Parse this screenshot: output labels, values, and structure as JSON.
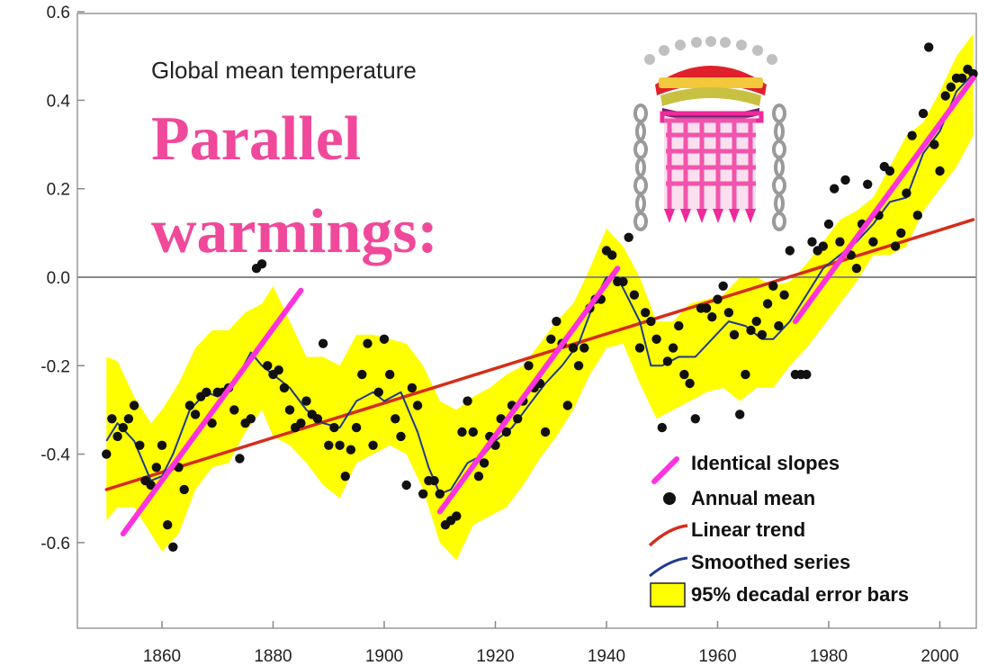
{
  "chart_data": {
    "type": "line",
    "title": "Global mean temperature",
    "overlay_text": [
      "Parallel",
      "warmings:"
    ],
    "xlabel": "",
    "ylabel": "",
    "xlim": [
      1848,
      2008
    ],
    "ylim": [
      -0.8,
      0.62
    ],
    "x_ticks": [
      1860,
      1880,
      1900,
      1920,
      1940,
      1960,
      1980,
      2000
    ],
    "y_ticks": [
      -0.6,
      -0.4,
      -0.2,
      0.0,
      0.2,
      0.4,
      0.6
    ],
    "y_tick_labels": [
      "-0.6",
      "-0.4",
      "-0.2",
      "0.0",
      "0.2",
      "0.4",
      "0.6"
    ],
    "colors": {
      "error_band": "#ffff00",
      "smoothed": "#1f3a8a",
      "trend": "#d62c1a",
      "slopes": "#ff33dd",
      "points": "#111111",
      "overlay_text": "#f0489a",
      "identical_slopes_label": "#ff33dd"
    },
    "legend": {
      "placement": "bottom-right",
      "items": [
        {
          "label": "Identical slopes",
          "kind": "slope"
        },
        {
          "label": "Annual mean",
          "kind": "point"
        },
        {
          "label": "Linear trend",
          "kind": "trend"
        },
        {
          "label": "Smoothed series",
          "kind": "smooth"
        },
        {
          "label": "95% decadal error bars",
          "kind": "band"
        }
      ]
    },
    "linear_trend": {
      "x": [
        1850,
        2006
      ],
      "y": [
        -0.48,
        0.13
      ]
    },
    "identical_slopes": [
      {
        "x": [
          1853,
          1885
        ],
        "y": [
          -0.58,
          -0.03
        ]
      },
      {
        "x": [
          1910,
          1942
        ],
        "y": [
          -0.53,
          0.02
        ]
      },
      {
        "x": [
          1974,
          2006
        ],
        "y": [
          -0.1,
          0.45
        ]
      }
    ],
    "smoothed_series": {
      "x": [
        1850,
        1852,
        1855,
        1858,
        1860,
        1862,
        1865,
        1868,
        1870,
        1873,
        1876,
        1878,
        1880,
        1883,
        1886,
        1889,
        1892,
        1895,
        1898,
        1900,
        1903,
        1906,
        1908,
        1910,
        1912,
        1915,
        1918,
        1920,
        1923,
        1926,
        1929,
        1932,
        1935,
        1938,
        1940,
        1942,
        1944,
        1946,
        1948,
        1950,
        1953,
        1956,
        1959,
        1962,
        1965,
        1968,
        1970,
        1973,
        1976,
        1979,
        1982,
        1985,
        1988,
        1991,
        1994,
        1997,
        2000,
        2003,
        2006
      ],
      "y": [
        -0.37,
        -0.33,
        -0.37,
        -0.46,
        -0.45,
        -0.4,
        -0.3,
        -0.26,
        -0.27,
        -0.24,
        -0.17,
        -0.2,
        -0.22,
        -0.25,
        -0.3,
        -0.33,
        -0.34,
        -0.28,
        -0.26,
        -0.28,
        -0.26,
        -0.35,
        -0.43,
        -0.49,
        -0.48,
        -0.42,
        -0.4,
        -0.37,
        -0.34,
        -0.29,
        -0.24,
        -0.2,
        -0.15,
        -0.05,
        0.0,
        0.0,
        -0.05,
        -0.1,
        -0.2,
        -0.2,
        -0.18,
        -0.18,
        -0.14,
        -0.1,
        -0.11,
        -0.14,
        -0.14,
        -0.1,
        -0.04,
        0.02,
        0.05,
        0.08,
        0.12,
        0.17,
        0.18,
        0.28,
        0.33,
        0.42,
        0.46
      ]
    },
    "error_band": {
      "x": [
        1850,
        1852,
        1855,
        1858,
        1860,
        1863,
        1866,
        1869,
        1872,
        1875,
        1878,
        1880,
        1883,
        1886,
        1889,
        1892,
        1895,
        1898,
        1901,
        1904,
        1907,
        1910,
        1913,
        1916,
        1919,
        1922,
        1925,
        1928,
        1931,
        1934,
        1937,
        1940,
        1943,
        1946,
        1949,
        1952,
        1955,
        1958,
        1961,
        1964,
        1967,
        1970,
        1973,
        1976,
        1979,
        1982,
        1985,
        1988,
        1991,
        1994,
        1997,
        2000,
        2003,
        2006
      ],
      "upper": [
        -0.18,
        -0.19,
        -0.27,
        -0.33,
        -0.3,
        -0.24,
        -0.16,
        -0.12,
        -0.12,
        -0.08,
        -0.06,
        -0.02,
        -0.1,
        -0.18,
        -0.18,
        -0.2,
        -0.13,
        -0.13,
        -0.14,
        -0.15,
        -0.2,
        -0.28,
        -0.3,
        -0.27,
        -0.25,
        -0.22,
        -0.2,
        -0.15,
        -0.1,
        -0.06,
        0.02,
        0.11,
        0.07,
        0.0,
        -0.1,
        -0.1,
        -0.06,
        -0.05,
        -0.04,
        0.0,
        0.0,
        -0.02,
        -0.01,
        0.03,
        0.08,
        0.13,
        0.15,
        0.18,
        0.25,
        0.32,
        0.35,
        0.42,
        0.5,
        0.55
      ],
      "lower": [
        -0.55,
        -0.52,
        -0.52,
        -0.58,
        -0.62,
        -0.58,
        -0.48,
        -0.43,
        -0.42,
        -0.35,
        -0.3,
        -0.36,
        -0.38,
        -0.42,
        -0.47,
        -0.5,
        -0.42,
        -0.4,
        -0.38,
        -0.4,
        -0.48,
        -0.6,
        -0.64,
        -0.56,
        -0.54,
        -0.52,
        -0.47,
        -0.41,
        -0.36,
        -0.3,
        -0.22,
        -0.16,
        -0.15,
        -0.24,
        -0.32,
        -0.3,
        -0.28,
        -0.26,
        -0.25,
        -0.28,
        -0.25,
        -0.25,
        -0.2,
        -0.16,
        -0.11,
        -0.06,
        -0.01,
        0.05,
        0.05,
        0.07,
        0.15,
        0.2,
        0.25,
        0.32
      ]
    },
    "annual_mean": {
      "x": [
        1850,
        1851,
        1852,
        1853,
        1854,
        1855,
        1856,
        1857,
        1858,
        1859,
        1860,
        1861,
        1862,
        1863,
        1864,
        1865,
        1866,
        1867,
        1868,
        1869,
        1870,
        1871,
        1872,
        1873,
        1874,
        1875,
        1876,
        1877,
        1878,
        1879,
        1880,
        1881,
        1882,
        1883,
        1884,
        1885,
        1886,
        1887,
        1888,
        1889,
        1890,
        1891,
        1892,
        1893,
        1894,
        1895,
        1896,
        1897,
        1898,
        1899,
        1900,
        1901,
        1902,
        1903,
        1904,
        1905,
        1906,
        1907,
        1908,
        1909,
        1910,
        1911,
        1912,
        1913,
        1914,
        1915,
        1916,
        1917,
        1918,
        1919,
        1920,
        1921,
        1922,
        1923,
        1924,
        1925,
        1926,
        1927,
        1928,
        1929,
        1930,
        1931,
        1932,
        1933,
        1934,
        1935,
        1936,
        1937,
        1938,
        1939,
        1940,
        1941,
        1942,
        1943,
        1944,
        1945,
        1946,
        1947,
        1948,
        1949,
        1950,
        1951,
        1952,
        1953,
        1954,
        1955,
        1956,
        1957,
        1958,
        1959,
        1960,
        1961,
        1962,
        1963,
        1964,
        1965,
        1966,
        1967,
        1968,
        1969,
        1970,
        1971,
        1972,
        1973,
        1974,
        1975,
        1976,
        1977,
        1978,
        1979,
        1980,
        1981,
        1982,
        1983,
        1984,
        1985,
        1986,
        1987,
        1988,
        1989,
        1990,
        1991,
        1992,
        1993,
        1994,
        1995,
        1996,
        1997,
        1998,
        1999,
        2000,
        2001,
        2002,
        2003,
        2004,
        2005,
        2006
      ],
      "y": [
        -0.4,
        -0.32,
        -0.36,
        -0.34,
        -0.32,
        -0.29,
        -0.38,
        -0.46,
        -0.47,
        -0.43,
        -0.38,
        -0.56,
        -0.61,
        -0.43,
        -0.48,
        -0.29,
        -0.31,
        -0.27,
        -0.26,
        -0.33,
        -0.26,
        -0.26,
        -0.25,
        -0.3,
        -0.41,
        -0.33,
        -0.32,
        0.02,
        0.03,
        -0.2,
        -0.22,
        -0.21,
        -0.25,
        -0.3,
        -0.34,
        -0.33,
        -0.28,
        -0.31,
        -0.32,
        -0.15,
        -0.38,
        -0.34,
        -0.38,
        -0.45,
        -0.39,
        -0.34,
        -0.22,
        -0.15,
        -0.38,
        -0.26,
        -0.14,
        -0.22,
        -0.32,
        -0.36,
        -0.47,
        -0.25,
        -0.29,
        -0.49,
        -0.46,
        -0.46,
        -0.49,
        -0.56,
        -0.55,
        -0.54,
        -0.35,
        -0.28,
        -0.35,
        -0.45,
        -0.42,
        -0.36,
        -0.38,
        -0.32,
        -0.35,
        -0.29,
        -0.32,
        -0.28,
        -0.2,
        -0.25,
        -0.24,
        -0.35,
        -0.14,
        -0.1,
        -0.15,
        -0.29,
        -0.16,
        -0.2,
        -0.16,
        -0.07,
        -0.05,
        -0.05,
        0.06,
        0.05,
        -0.01,
        -0.01,
        0.09,
        -0.04,
        -0.16,
        -0.08,
        -0.1,
        -0.14,
        -0.34,
        -0.19,
        -0.16,
        -0.11,
        -0.22,
        -0.24,
        -0.32,
        -0.07,
        -0.07,
        -0.09,
        -0.05,
        -0.02,
        -0.08,
        -0.13,
        -0.31,
        -0.22,
        -0.12,
        -0.1,
        -0.13,
        -0.06,
        -0.02,
        -0.11,
        -0.04,
        0.06,
        -0.22,
        -0.22,
        -0.22,
        0.08,
        0.06,
        0.07,
        0.12,
        0.2,
        0.08,
        0.22,
        0.05,
        0.02,
        0.12,
        0.21,
        0.08,
        0.14,
        0.25,
        0.24,
        0.07,
        0.1,
        0.19,
        0.32,
        0.14,
        0.37,
        0.52,
        0.3,
        0.24,
        0.41,
        0.43,
        0.45,
        0.45,
        0.47,
        0.46
      ]
    }
  }
}
